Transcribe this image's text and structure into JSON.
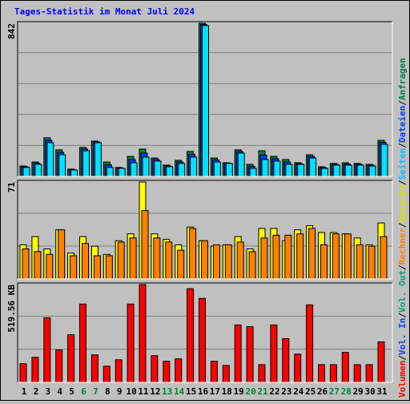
{
  "chart_data": {
    "type": "bar",
    "title": "Tages-Statistik im Monat Juli 2024",
    "categories": [
      "1",
      "2",
      "3",
      "4",
      "5",
      "6",
      "7",
      "8",
      "9",
      "10",
      "11",
      "12",
      "13",
      "14",
      "15",
      "16",
      "17",
      "18",
      "19",
      "20",
      "21",
      "22",
      "23",
      "24",
      "25",
      "26",
      "27",
      "28",
      "29",
      "30",
      "31"
    ],
    "highlight_categories": [
      "6",
      "7",
      "13",
      "14",
      "20",
      "21",
      "27",
      "28"
    ],
    "highlight_color": "#008040",
    "legend_separator": "/",
    "legend": [
      {
        "name": "Volumen",
        "color": "#ff0000"
      },
      {
        "name": "Vol. In",
        "color": "#0040ff"
      },
      {
        "name": "Vol. Out",
        "color": "#00a080"
      },
      {
        "name": "Rechner",
        "color": "#ff8000"
      },
      {
        "name": "Besuche",
        "color": "#e0e000"
      },
      {
        "name": "Seiten",
        "color": "#00c0ff"
      },
      {
        "name": "Dateien",
        "color": "#0040ff"
      },
      {
        "name": "Anfragen",
        "color": "#008040"
      }
    ],
    "panels": [
      {
        "ylim": [
          0,
          842
        ],
        "yticks": [
          842
        ],
        "series": [
          {
            "name": "Anfragen",
            "color": "#008040",
            "values": [
              57,
              79,
              212,
              146,
              40,
              159,
              194,
              79,
              49,
              110,
              150,
              101,
              62,
              88,
              137,
              842,
              101,
              75,
              146,
              66,
              141,
              110,
              93,
              75,
              119,
              53,
              71,
              75,
              71,
              66,
              198
            ]
          },
          {
            "name": "Dateien",
            "color": "#0040ff",
            "values": [
              53,
              72,
              198,
              132,
              37,
              150,
              190,
              64,
              46,
              92,
              128,
              92,
              57,
              79,
              121,
              835,
              90,
              73,
              137,
              55,
              117,
              97,
              79,
              70,
              110,
              48,
              66,
              68,
              66,
              61,
              187
            ]
          },
          {
            "name": "Seiten",
            "color": "#00e0ff",
            "values": [
              49,
              66,
              185,
              119,
              35,
              141,
              185,
              49,
              44,
              75,
              106,
              84,
              53,
              71,
              106,
              829,
              79,
              71,
              128,
              44,
              93,
              84,
              66,
              66,
              101,
              44,
              62,
              62,
              62,
              57,
              176
            ]
          }
        ]
      },
      {
        "ylim": [
          0,
          71
        ],
        "yticks": [
          71
        ],
        "series": [
          {
            "name": "Besuche",
            "color": "#ffff00",
            "values": [
              25,
              31,
              22,
              36,
              19,
              31,
              24,
              18,
              28,
              33,
              71,
              33,
              29,
              25,
              38,
              28,
              24,
              25,
              31,
              22,
              37,
              37,
              28,
              36,
              39,
              34,
              34,
              33,
              30,
              25,
              41
            ]
          },
          {
            "name": "Rechner",
            "color": "#ff8000",
            "values": [
              22,
              20,
              18,
              36,
              17,
              26,
              17,
              17,
              27,
              30,
              50,
              30,
              27,
              21,
              37,
              28,
              25,
              25,
              27,
              20,
              30,
              32,
              32,
              33,
              37,
              25,
              33,
              33,
              25,
              24,
              31
            ]
          }
        ]
      },
      {
        "ylim": [
          0,
          519.56
        ],
        "yticks": [
          {
            "value": 519.56,
            "label": "519.56 KB"
          }
        ],
        "series": [
          {
            "name": "Volumen",
            "color": "#ff0000",
            "values": [
              99,
              133,
              343,
              172,
              253,
              416,
              146,
              86,
              120,
              416,
              519.56,
              142,
              112,
              125,
              498,
              446,
              112,
              90,
              305,
              296,
              94,
              305,
              232,
              150,
              412,
              94,
              94,
              159,
              94,
              94,
              215
            ]
          }
        ]
      }
    ]
  }
}
